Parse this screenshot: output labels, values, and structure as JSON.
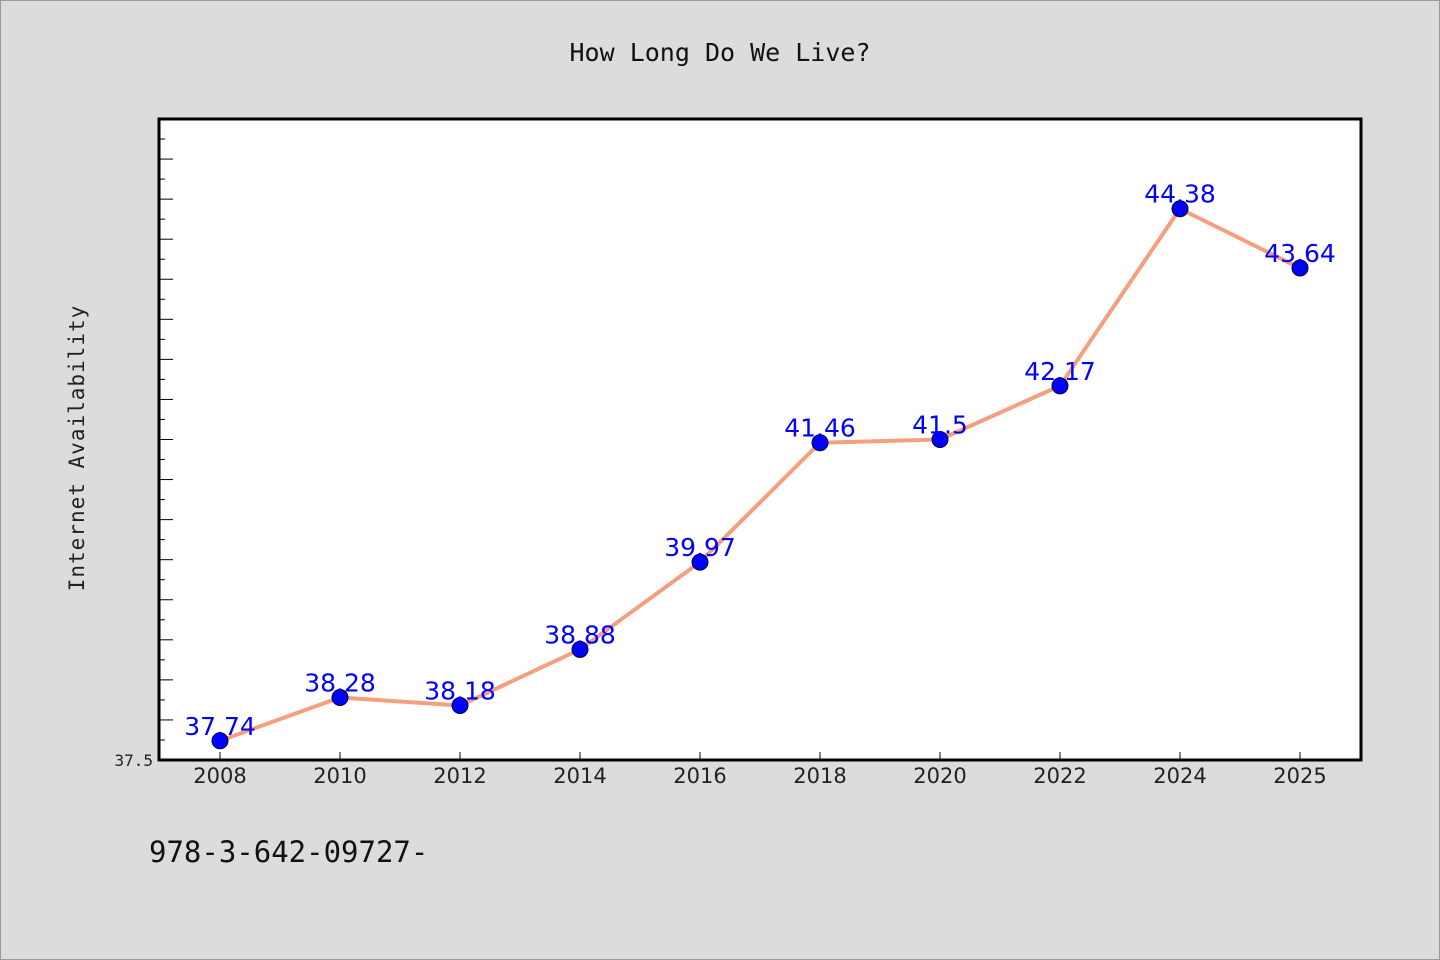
{
  "chart_data": {
    "type": "line",
    "title": "How Long Do We Live?",
    "xlabel": "",
    "ylabel": "Internet Availability",
    "categories": [
      "2008",
      "2010",
      "2012",
      "2014",
      "2016",
      "2018",
      "2020",
      "2022",
      "2024",
      "2025"
    ],
    "series": [
      {
        "values": [
          37.74,
          38.28,
          38.18,
          38.88,
          39.97,
          41.46,
          41.5,
          42.17,
          44.38,
          43.64
        ],
        "labels": [
          "37.74",
          "38.28",
          "38.18",
          "38.88",
          "39.97",
          "41.46",
          "41.5",
          "42.17",
          "44.38",
          "43.64"
        ]
      }
    ],
    "ylim": [
      37.5,
      45.5
    ],
    "yticks_labeled": [
      "37.5"
    ],
    "grid": false,
    "legend": "none",
    "colors": {
      "line": "#f4a07f",
      "marker": "#0000ff",
      "data_label": "#0000ff",
      "plot_bg": "#ffffff",
      "page_bg": "#dcdcdc"
    }
  },
  "footnote": "978-3-642-09727-"
}
